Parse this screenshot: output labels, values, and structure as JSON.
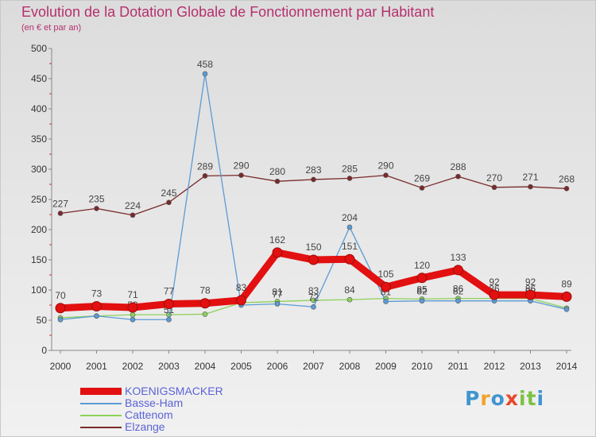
{
  "title": "Evolution de la Dotation Globale de Fonctionnement par Habitant",
  "subtitle": "(en € et par an)",
  "brand": {
    "letters": [
      "P",
      "r",
      "o",
      "x",
      "i",
      "t",
      "i"
    ],
    "colors": [
      "#3f95cf",
      "#f0a22e",
      "#3f95cf",
      "#e8482a",
      "#7cc242",
      "#7cc242",
      "#3f95cf"
    ]
  },
  "colors": {
    "title": "#b5306d",
    "axis": "#888888",
    "tick_mark": "#cc3333",
    "label": "#444444"
  },
  "chart_data": {
    "type": "line",
    "title": "Evolution de la Dotation Globale de Fonctionnement par Habitant",
    "subtitle": "(en € et par an)",
    "xlabel": "",
    "ylabel": "",
    "ylim": [
      0,
      500
    ],
    "yticks": [
      0,
      50,
      100,
      150,
      200,
      250,
      300,
      350,
      400,
      450,
      500
    ],
    "categories": [
      "2000",
      "2001",
      "2002",
      "2003",
      "2004",
      "2005",
      "2006",
      "2007",
      "2008",
      "2009",
      "2010",
      "2011",
      "2012",
      "2013",
      "2014"
    ],
    "grid": false,
    "legend_position": "bottom-left",
    "series": [
      {
        "name": "Elzange",
        "color": "#7a2a2a",
        "weight": "thin",
        "values": [
          227,
          235,
          224,
          245,
          289,
          290,
          280,
          283,
          285,
          290,
          269,
          288,
          270,
          271,
          268
        ],
        "labels": [
          "227",
          "235",
          "224",
          "245",
          "289",
          "290",
          "280",
          "283",
          "285",
          "290",
          "269",
          "288",
          "270",
          "271",
          "268"
        ]
      },
      {
        "name": "Cattenom",
        "color": "#8dd15a",
        "weight": "thin",
        "values": [
          54,
          57,
          59,
          59,
          60,
          79,
          81,
          83,
          84,
          86,
          85,
          86,
          86,
          86,
          70
        ],
        "labels": [
          "",
          "",
          "59",
          "",
          "",
          "",
          "81",
          "83",
          "84",
          "",
          "85",
          "86",
          "86",
          "86",
          ""
        ]
      },
      {
        "name": "Basse-Ham",
        "color": "#5b9bd5",
        "weight": "thin",
        "values": [
          51,
          57,
          51,
          51,
          458,
          75,
          77,
          72,
          204,
          81,
          82,
          82,
          82,
          82,
          68
        ],
        "labels": [
          "",
          "",
          "",
          "51",
          "458",
          "",
          "77",
          "72",
          "204",
          "81",
          "82",
          "82",
          "",
          "82",
          ""
        ]
      },
      {
        "name": "KOENIGSMACKER",
        "color": "#e21010",
        "weight": "thick",
        "values": [
          70,
          73,
          71,
          77,
          78,
          83,
          162,
          150,
          151,
          105,
          120,
          133,
          92,
          92,
          89
        ],
        "labels": [
          "70",
          "73",
          "71",
          "77",
          "78",
          "83",
          "162",
          "150",
          "151",
          "105",
          "120",
          "133",
          "92",
          "92",
          "89"
        ]
      }
    ]
  },
  "legend": [
    {
      "label": "KOENIGSMACKER",
      "color": "#e21010",
      "text_color": "#5b63d6"
    },
    {
      "label": "Basse-Ham",
      "color": "#5b9bd5",
      "text_color": "#5b63d6"
    },
    {
      "label": "Cattenom",
      "color": "#8dd15a",
      "text_color": "#5b63d6"
    },
    {
      "label": "Elzange",
      "color": "#7a2a2a",
      "text_color": "#5b63d6"
    }
  ]
}
